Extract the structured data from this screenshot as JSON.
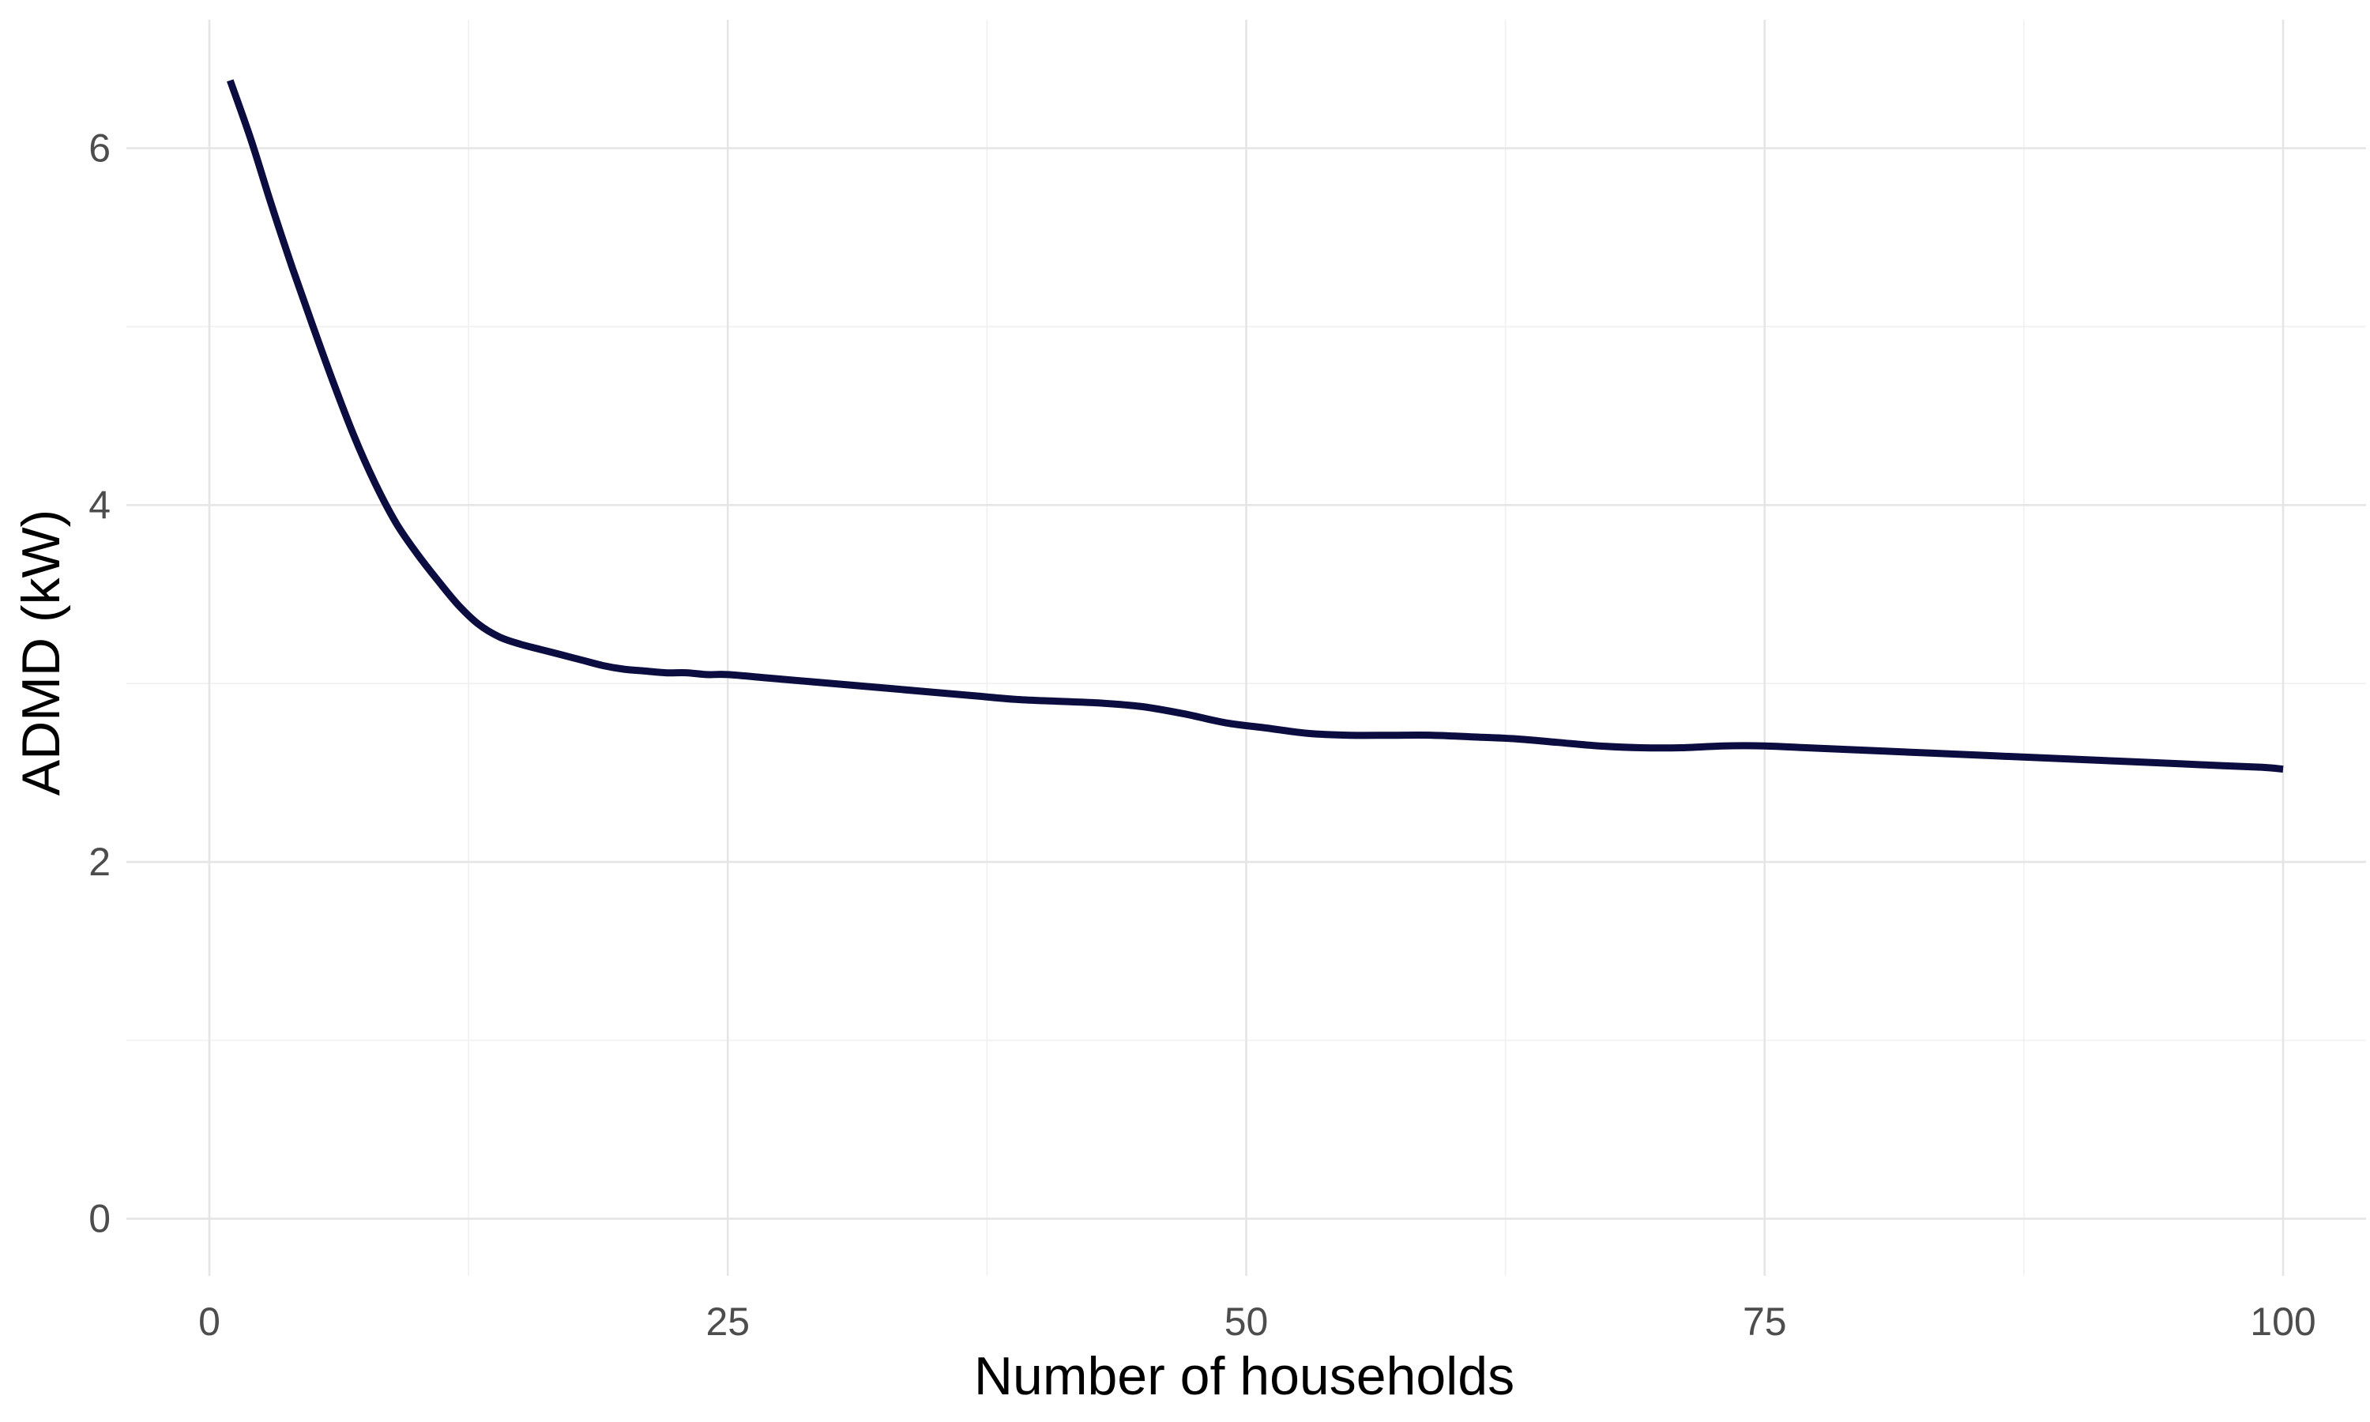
{
  "chart_data": {
    "type": "line",
    "title": "",
    "xlabel": "Number of households",
    "ylabel": "ADMD (kW)",
    "xlim": [
      -4,
      104
    ],
    "ylim": [
      -0.32,
      6.72
    ],
    "x_ticks": [
      0,
      25,
      50,
      75,
      100
    ],
    "y_ticks": [
      0,
      2,
      4,
      6
    ],
    "x_tick_labels": [
      "0",
      "25",
      "50",
      "75",
      "100"
    ],
    "y_tick_labels": [
      "0",
      "2",
      "4",
      "6"
    ],
    "grid": true,
    "legend": "none",
    "colors": {
      "line": "#0b0c3f",
      "grid_major": "#e5e5e5",
      "grid_minor": "#f0f0f0",
      "tick_text": "#4d4d4d",
      "axis_title": "#000000"
    },
    "series": [
      {
        "x": [
          1,
          2,
          3,
          4,
          5,
          6,
          7,
          8,
          9,
          10,
          11,
          12,
          13,
          14,
          15,
          16,
          17,
          18,
          19,
          20,
          21,
          22,
          23,
          24,
          25,
          27,
          29,
          31,
          33,
          35,
          37,
          39,
          41,
          43,
          45,
          47,
          49,
          51,
          53,
          55,
          57,
          59,
          61,
          63,
          65,
          67,
          69,
          71,
          73,
          75,
          77,
          79,
          81,
          83,
          85,
          87,
          89,
          91,
          93,
          95,
          97,
          99,
          100
        ],
        "y": [
          6.38,
          6.05,
          5.68,
          5.33,
          5.0,
          4.68,
          4.38,
          4.12,
          3.9,
          3.73,
          3.58,
          3.44,
          3.33,
          3.26,
          3.22,
          3.19,
          3.16,
          3.13,
          3.1,
          3.08,
          3.07,
          3.06,
          3.06,
          3.05,
          3.05,
          3.03,
          3.01,
          2.99,
          2.97,
          2.95,
          2.93,
          2.91,
          2.9,
          2.89,
          2.87,
          2.83,
          2.78,
          2.75,
          2.72,
          2.71,
          2.71,
          2.71,
          2.7,
          2.69,
          2.67,
          2.65,
          2.64,
          2.64,
          2.65,
          2.65,
          2.64,
          2.63,
          2.62,
          2.61,
          2.6,
          2.59,
          2.58,
          2.57,
          2.56,
          2.55,
          2.54,
          2.53,
          2.52
        ]
      }
    ]
  }
}
